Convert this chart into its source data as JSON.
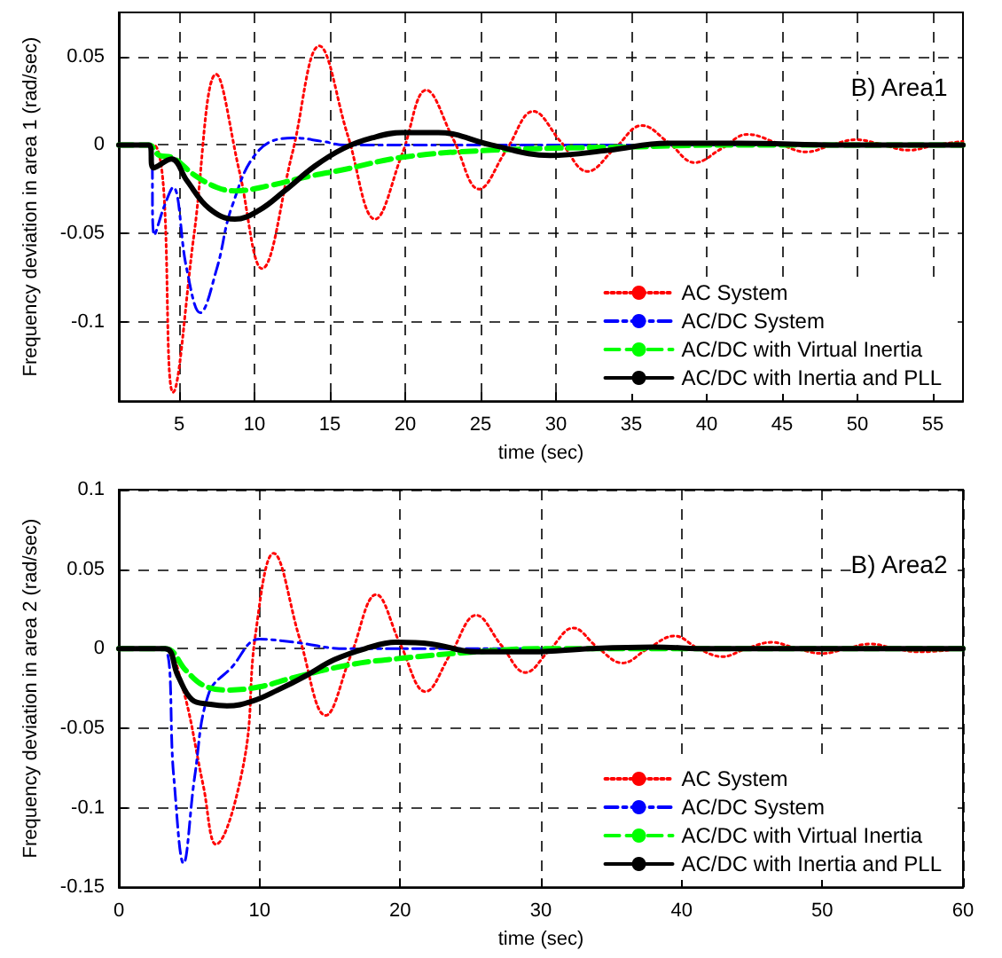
{
  "chart_data": [
    {
      "type": "line",
      "xlabel": "time (sec)",
      "ylabel": "Frequency deviation in area 1 (rad/sec)",
      "annotations": [
        "B) Area1"
      ],
      "xlim": [
        1,
        57
      ],
      "xticks": [
        5,
        10,
        15,
        20,
        25,
        30,
        35,
        40,
        45,
        50,
        55
      ],
      "ylim": [
        -0.145,
        0.075
      ],
      "yticks": [
        -0.1,
        -0.05,
        0,
        0.05
      ],
      "grid": true,
      "legend": "bottom right",
      "marker": "none",
      "series": [
        {
          "name": "AC System",
          "color": "#ff0000",
          "line_style": "dotted",
          "x": [
            1,
            3.3,
            4.6,
            6,
            7.46,
            9,
            10.5,
            12.5,
            14.3,
            16.2,
            18,
            19.8,
            21.4,
            23.2,
            24.9,
            26.7,
            28.5,
            30.3,
            32.1,
            33.9,
            35.7,
            37.5,
            39.2,
            41,
            42.7,
            44.7,
            46.6,
            48.3,
            49.9,
            51.7,
            53.4,
            55.2,
            57
          ],
          "values": [
            0,
            0,
            -0.14,
            -0.05,
            0.04,
            -0.015,
            -0.07,
            -0.005,
            0.056,
            0.005,
            -0.042,
            -0.005,
            0.031,
            0.003,
            -0.025,
            -0.003,
            0.019,
            0.002,
            -0.015,
            -0.002,
            0.011,
            0.001,
            -0.01,
            -0.002,
            0.006,
            0.001,
            -0.004,
            0,
            0.003,
            0,
            -0.003,
            0,
            0.002
          ]
        },
        {
          "name": "AC/DC System",
          "color": "#0000ff",
          "line_style": "dashdot",
          "x": [
            1,
            3.1,
            3.36,
            4,
            4.6,
            5.5,
            6.4,
            7.5,
            8.5,
            10.3,
            12.6,
            14.5,
            16,
            20,
            57
          ],
          "values": [
            0,
            0,
            -0.051,
            -0.035,
            -0.024,
            -0.07,
            -0.095,
            -0.07,
            -0.035,
            -0.003,
            0.004,
            0.002,
            0,
            0,
            0
          ]
        },
        {
          "name": "AC/DC with Virtual Inertia",
          "color": "#00ff00",
          "line_style": "dashed",
          "x": [
            1,
            3,
            3.7,
            4.5,
            6,
            7.5,
            8.7,
            11,
            13.5,
            15.9,
            19.8,
            25.7,
            35.5,
            42,
            57
          ],
          "values": [
            0,
            0,
            -0.006,
            -0.007,
            -0.017,
            -0.024,
            -0.026,
            -0.023,
            -0.018,
            -0.014,
            -0.007,
            -0.003,
            -0.001,
            0,
            0
          ]
        },
        {
          "name": "AC/DC with Inertia and PLL",
          "color": "#000000",
          "line_style": "solid",
          "x": [
            1,
            3,
            3.3,
            4.5,
            5.5,
            7,
            8.7,
            10.3,
            12,
            14,
            15.9,
            17.8,
            19.8,
            22.2,
            25.7,
            29.6,
            33.5,
            37.4,
            42,
            49,
            57
          ],
          "values": [
            0,
            0,
            -0.013,
            -0.008,
            -0.02,
            -0.036,
            -0.042,
            -0.037,
            -0.026,
            -0.012,
            -0.002,
            0.004,
            0.007,
            0.007,
            0,
            -0.006,
            -0.003,
            0.001,
            0.001,
            0,
            0
          ]
        }
      ]
    },
    {
      "type": "line",
      "xlabel": "time (sec)",
      "ylabel": "Frequency deviation in area 2 (rad/sec)",
      "annotations": [
        "B) Area2"
      ],
      "xlim": [
        0,
        60
      ],
      "xticks": [
        0,
        10,
        20,
        30,
        40,
        50,
        60
      ],
      "ylim": [
        -0.15,
        0.1
      ],
      "yticks": [
        -0.15,
        -0.1,
        -0.05,
        0,
        0.05,
        0.1
      ],
      "grid": true,
      "legend": "bottom right",
      "marker": "none",
      "series": [
        {
          "name": "AC System",
          "color": "#ff0000",
          "line_style": "dotted",
          "x": [
            0,
            3.2,
            4.4,
            6,
            6.9,
            8.9,
            9.7,
            11,
            12.9,
            14.7,
            16.5,
            18.3,
            20,
            21.8,
            23.6,
            25.4,
            27.2,
            28.9,
            30.6,
            32.3,
            34,
            35.8,
            37.6,
            39.5,
            41.2,
            42.9,
            44.6,
            46.4,
            48.2,
            50,
            51.7,
            53.4,
            55.2,
            56.9,
            60
          ],
          "values": [
            0,
            0,
            -0.02,
            -0.086,
            -0.123,
            -0.071,
            0.008,
            0.06,
            0.005,
            -0.042,
            -0.004,
            0.034,
            0.003,
            -0.027,
            -0.003,
            0.021,
            0.002,
            -0.015,
            -0.001,
            0.013,
            0.001,
            -0.009,
            0,
            0.008,
            0,
            -0.005,
            0,
            0.004,
            0,
            -0.003,
            0,
            0.003,
            0,
            -0.002,
            0
          ]
        },
        {
          "name": "AC/DC System",
          "color": "#0000ff",
          "line_style": "dashdot",
          "x": [
            0,
            3.2,
            3.9,
            4.6,
            5.4,
            6.4,
            8,
            10,
            12.5,
            16.1,
            60
          ],
          "values": [
            0,
            0,
            -0.08,
            -0.135,
            -0.08,
            -0.028,
            -0.012,
            0.006,
            0.004,
            0,
            0
          ]
        },
        {
          "name": "AC/DC with Virtual Inertia",
          "color": "#00ff00",
          "line_style": "dashed",
          "x": [
            0,
            3.3,
            4.8,
            6,
            7.7,
            10,
            12.5,
            16.5,
            20.1,
            25.4,
            30,
            60
          ],
          "values": [
            0,
            0,
            -0.014,
            -0.023,
            -0.026,
            -0.024,
            -0.018,
            -0.01,
            -0.006,
            -0.002,
            0,
            0
          ]
        },
        {
          "name": "AC/DC with Inertia and PLL",
          "color": "#000000",
          "line_style": "solid",
          "x": [
            0,
            3.3,
            4.2,
            5.2,
            6.5,
            7.7,
            9.5,
            11.3,
            13.3,
            15.3,
            17.5,
            19.7,
            22.2,
            25.4,
            29.4,
            33.5,
            38,
            42,
            60
          ],
          "values": [
            0,
            0,
            -0.017,
            -0.032,
            -0.035,
            -0.036,
            -0.033,
            -0.026,
            -0.017,
            -0.007,
            0,
            0.004,
            0.003,
            -0.002,
            -0.002,
            0,
            0.001,
            0,
            0
          ]
        }
      ]
    }
  ]
}
